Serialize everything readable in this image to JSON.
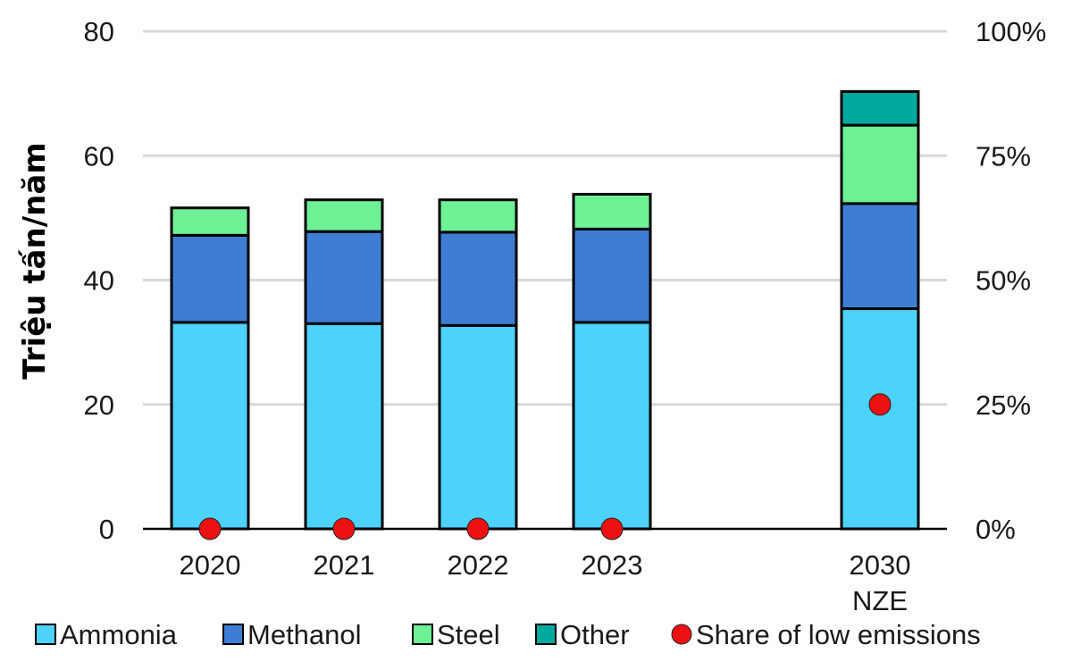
{
  "chart_data": {
    "type": "bar",
    "stacked": true,
    "categories": [
      [
        "2020"
      ],
      [
        "2021"
      ],
      [
        "2022"
      ],
      [
        "2023"
      ],
      [
        "2030",
        "NZE"
      ]
    ],
    "ylabel": "Triệu tấn/năm",
    "ylim": [
      0,
      80
    ],
    "yticks": [
      "0",
      "20",
      "40",
      "60",
      "80"
    ],
    "y2lim": [
      0,
      100
    ],
    "y2ticks": [
      "0%",
      "25%",
      "50%",
      "75%",
      "100%"
    ],
    "grid": true,
    "legend_position": "bottom",
    "series": [
      {
        "name": "Ammonia",
        "color": "#4dd2fc",
        "values": [
          33.2,
          33.0,
          32.7,
          33.2,
          35.4
        ]
      },
      {
        "name": "Methanol",
        "color": "#3f7dd4",
        "values": [
          14.0,
          14.8,
          15.0,
          15.0,
          16.9
        ]
      },
      {
        "name": "Steel",
        "color": "#6ef094",
        "values": [
          4.4,
          5.1,
          5.2,
          5.6,
          12.6
        ]
      },
      {
        "name": "Other",
        "color": "#00a99d",
        "values": [
          0,
          0,
          0,
          0,
          5.4
        ]
      }
    ],
    "line_series": {
      "name": "Share of low emissions",
      "color": "#ee1111",
      "axis": "right",
      "values": [
        0,
        0,
        0,
        0,
        25
      ]
    }
  }
}
